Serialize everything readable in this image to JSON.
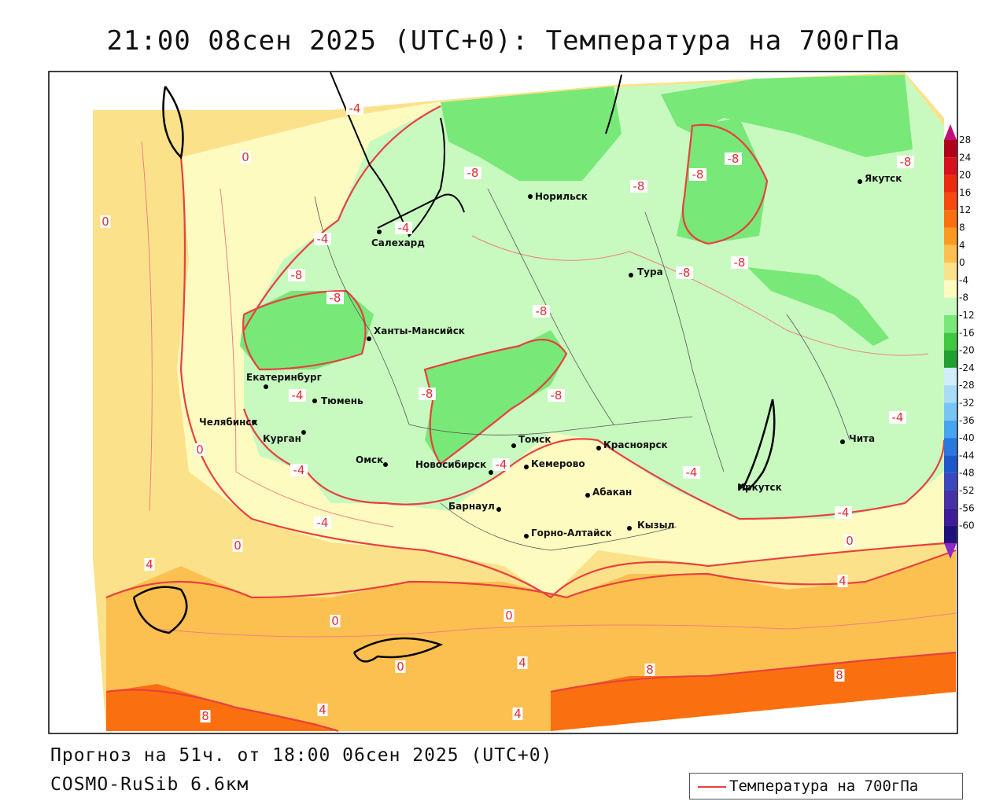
{
  "title": "21:00 08сен 2025 (UTC+0): Температура на 700гПа",
  "forecast_line": "Прогноз на 51ч. от 18:00 06сен 2025 (UTC+0)",
  "model_line": "COSMO-RuSib 6.6км",
  "legend": {
    "label": "Температура на 700гПа",
    "line_color": "#e84040"
  },
  "colorbar": {
    "ticks": [
      "28",
      "24",
      "20",
      "16",
      "12",
      "8",
      "4",
      "0",
      "-4",
      "-8",
      "-12",
      "-16",
      "-20",
      "-24",
      "-28",
      "-32",
      "-36",
      "-40",
      "-44",
      "-48",
      "-52",
      "-56",
      "-60"
    ],
    "colors": [
      "#b0001c",
      "#d8101c",
      "#ec2a10",
      "#f84a10",
      "#fa7010",
      "#fc9a20",
      "#fcc050",
      "#fbe28a",
      "#fdfbc0",
      "#c8fac0",
      "#78e878",
      "#40c840",
      "#20a030",
      "#d0eef8",
      "#a8dcf8",
      "#78c4f4",
      "#48a4ee",
      "#2878e0",
      "#1c58cc",
      "#3c48c0",
      "#4830a8",
      "#3c1c98",
      "#20107c"
    ],
    "top_arrow": "#c0107c",
    "bottom_arrow": "#8c28c8"
  },
  "cities": [
    {
      "name": "Норильск"
    },
    {
      "name": "Якутск"
    },
    {
      "name": "Салехард"
    },
    {
      "name": "Тура"
    },
    {
      "name": "Ханты-Мансийск"
    },
    {
      "name": "Екатеринбург"
    },
    {
      "name": "Тюмень"
    },
    {
      "name": "Челябинск"
    },
    {
      "name": "Курган"
    },
    {
      "name": "Омск"
    },
    {
      "name": "Новосибирск"
    },
    {
      "name": "Томск"
    },
    {
      "name": "Красноярск"
    },
    {
      "name": "Кемерово"
    },
    {
      "name": "Абакан"
    },
    {
      "name": "Барнаул"
    },
    {
      "name": "Горно-Алтайск"
    },
    {
      "name": "Кызыл"
    },
    {
      "name": "Иркутск"
    },
    {
      "name": "Чита"
    }
  ],
  "isotherm_labels": [
    "-4",
    "0",
    "-8",
    "-8",
    "-8",
    "-8",
    "-8",
    "-8",
    "-8",
    "-8",
    "-4",
    "-4",
    "-8",
    "-8",
    "-8",
    "-8",
    "0",
    "0",
    "-4",
    "-4",
    "-4",
    "-4",
    "-4",
    "-4",
    "-4",
    "0",
    "0",
    "4",
    "4",
    "0",
    "0",
    "0",
    "4",
    "8",
    "8",
    "4",
    "4",
    "8"
  ]
}
